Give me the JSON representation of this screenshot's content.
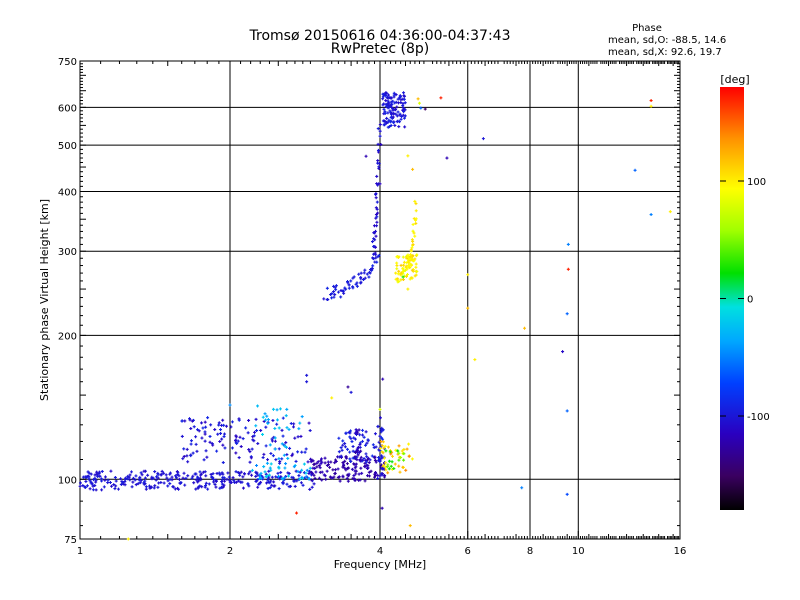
{
  "chart_data": {
    "type": "scatter",
    "title": "Tromsø 20150616 04:36:00-04:37:43",
    "subtitle": "RwPretec (8p)",
    "xlabel": "Frequency [MHz]",
    "ylabel": "Stationary phase Virtual Height [km]",
    "x_scale": "log",
    "y_scale": "log",
    "xlim": [
      1,
      16
    ],
    "ylim": [
      75,
      750
    ],
    "x_ticks": [
      1,
      2,
      4,
      6,
      8,
      10,
      16
    ],
    "x_tick_labels": [
      "1",
      "2",
      "4",
      "6",
      "8",
      "10",
      "16"
    ],
    "y_ticks": [
      75,
      100,
      200,
      300,
      400,
      500,
      600,
      750
    ],
    "y_tick_labels": [
      "75",
      "100",
      "200",
      "300",
      "400",
      "500",
      "600",
      "750"
    ],
    "grid": true,
    "colorbar": {
      "label": "[deg]",
      "range": [
        -180,
        180
      ],
      "ticks": [
        100,
        0,
        -100
      ],
      "tick_labels": [
        "100",
        "0",
        "-100"
      ]
    },
    "phase_stats": {
      "heading": "Phase",
      "line_o": "mean, sd,O: -88.5, 14.6",
      "line_x": "mean, sd,X:  92.6, 19.7"
    },
    "groups": [
      {
        "f": [
          1.0,
          2.95
        ],
        "h": [
          95,
          104
        ],
        "n": 320,
        "phase": [
          -110,
          -95
        ],
        "seed": 11
      },
      {
        "f": [
          1.6,
          2.9
        ],
        "h": [
          108,
          135
        ],
        "n": 140,
        "phase": [
          -115,
          -90
        ],
        "seed": 12
      },
      {
        "f": [
          2.2,
          2.9
        ],
        "h": [
          100,
          108
        ],
        "n": 40,
        "phase": [
          -50,
          -15
        ],
        "seed": 13
      },
      {
        "f": [
          2.25,
          2.85
        ],
        "h": [
          110,
          148
        ],
        "n": 30,
        "phase": [
          -40,
          -15
        ],
        "seed": 14
      },
      {
        "f": [
          2.9,
          4.1
        ],
        "h": [
          99,
          112
        ],
        "n": 140,
        "phase": [
          -130,
          -115
        ],
        "seed": 15
      },
      {
        "f": [
          3.3,
          4.1
        ],
        "h": [
          108,
          128
        ],
        "n": 70,
        "phase": [
          -105,
          -85
        ],
        "seed": 16
      },
      {
        "f": [
          4.0,
          4.7
        ],
        "h": [
          102,
          120
        ],
        "n": 40,
        "phase": [
          90,
          140
        ],
        "seed": 17
      },
      {
        "f": [
          4.1,
          4.5
        ],
        "h": [
          105,
          115
        ],
        "n": 15,
        "phase": [
          20,
          60
        ],
        "seed": 18
      },
      {
        "f": [
          3.55,
          3.7
        ],
        "h": [
          103,
          128
        ],
        "n": 20,
        "phase": [
          -125,
          -110
        ],
        "seed": 21
      },
      {
        "f": [
          3.95,
          4.05
        ],
        "h": [
          100,
          135
        ],
        "n": 20,
        "phase": [
          -110,
          -95
        ],
        "seed": 22
      },
      {
        "f": [
          4.05,
          4.5
        ],
        "h": [
          545,
          645
        ],
        "n": 120,
        "phase": [
          -110,
          -90
        ],
        "seed": 19
      },
      {
        "f": [
          4.3,
          4.75
        ],
        "h": [
          258,
          295
        ],
        "n": 70,
        "phase": [
          85,
          115
        ],
        "seed": 20
      }
    ],
    "curves": [
      {
        "f0": 3.1,
        "f1": 3.98,
        "h0": 245,
        "h1": 290,
        "n": 60,
        "spread": 8,
        "phase": [
          -105,
          -90
        ],
        "seed": 31
      },
      {
        "f0": 3.88,
        "f1": 4.0,
        "h0": 300,
        "h1": 560,
        "n": 45,
        "spread": 15,
        "phase": [
          -115,
          -95
        ],
        "seed": 32
      },
      {
        "f0": 4.55,
        "f1": 4.72,
        "h0": 280,
        "h1": 375,
        "n": 35,
        "spread": 10,
        "phase": [
          90,
          110
        ],
        "seed": 33
      }
    ],
    "points": [
      {
        "x": 2.0,
        "y": 143,
        "phase": -45
      },
      {
        "x": 2.6,
        "y": 140,
        "phase": -35
      },
      {
        "x": 2.85,
        "y": 165,
        "phase": -100
      },
      {
        "x": 2.85,
        "y": 160,
        "phase": -100
      },
      {
        "x": 2.72,
        "y": 85,
        "phase": 170
      },
      {
        "x": 1.25,
        "y": 75,
        "phase": 100
      },
      {
        "x": 3.2,
        "y": 148,
        "phase": 100
      },
      {
        "x": 3.45,
        "y": 156,
        "phase": -130
      },
      {
        "x": 3.5,
        "y": 152,
        "phase": -100
      },
      {
        "x": 4.05,
        "y": 162,
        "phase": -120
      },
      {
        "x": 4.0,
        "y": 140,
        "phase": 80
      },
      {
        "x": 4.04,
        "y": 87,
        "phase": -120
      },
      {
        "x": 4.6,
        "y": 80,
        "phase": 120
      },
      {
        "x": 4.3,
        "y": 270,
        "phase": 100
      },
      {
        "x": 4.45,
        "y": 265,
        "phase": 30
      },
      {
        "x": 4.55,
        "y": 250,
        "phase": 100
      },
      {
        "x": 3.75,
        "y": 474,
        "phase": -120
      },
      {
        "x": 4.0,
        "y": 415,
        "phase": -115
      },
      {
        "x": 4.55,
        "y": 475,
        "phase": 100
      },
      {
        "x": 4.65,
        "y": 445,
        "phase": 120
      },
      {
        "x": 4.77,
        "y": 625,
        "phase": 120
      },
      {
        "x": 4.8,
        "y": 612,
        "phase": 80
      },
      {
        "x": 4.83,
        "y": 598,
        "phase": -60
      },
      {
        "x": 4.93,
        "y": 595,
        "phase": -150
      },
      {
        "x": 5.3,
        "y": 628,
        "phase": 170
      },
      {
        "x": 5.45,
        "y": 470,
        "phase": -120
      },
      {
        "x": 6.0,
        "y": 268,
        "phase": 100
      },
      {
        "x": 6.0,
        "y": 228,
        "phase": 120
      },
      {
        "x": 6.2,
        "y": 178,
        "phase": 100
      },
      {
        "x": 6.45,
        "y": 516,
        "phase": -100
      },
      {
        "x": 7.8,
        "y": 207,
        "phase": 120
      },
      {
        "x": 7.7,
        "y": 96,
        "phase": -50
      },
      {
        "x": 9.3,
        "y": 185,
        "phase": -110
      },
      {
        "x": 9.55,
        "y": 310,
        "phase": -50
      },
      {
        "x": 9.55,
        "y": 275,
        "phase": 170
      },
      {
        "x": 9.5,
        "y": 222,
        "phase": -60
      },
      {
        "x": 9.5,
        "y": 139,
        "phase": -60
      },
      {
        "x": 9.5,
        "y": 93,
        "phase": -70
      },
      {
        "x": 13.0,
        "y": 443,
        "phase": -60
      },
      {
        "x": 14.0,
        "y": 620,
        "phase": 170
      },
      {
        "x": 14.0,
        "y": 603,
        "phase": 100
      },
      {
        "x": 14.0,
        "y": 358,
        "phase": -50
      },
      {
        "x": 15.3,
        "y": 363,
        "phase": 100
      }
    ]
  }
}
